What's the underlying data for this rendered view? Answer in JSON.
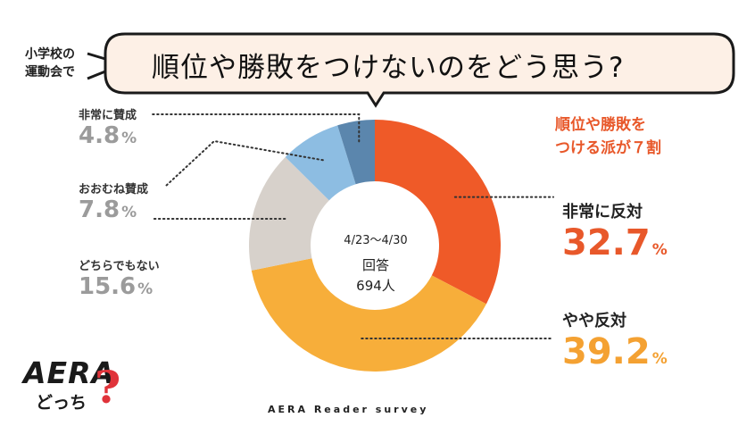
{
  "prefix": {
    "line1": "小学校の",
    "line2": "運動会で"
  },
  "question": "順位や勝敗をつけないのをどう思う?",
  "headline": {
    "line1": "順位や勝敗を",
    "line2": "つける派が７割"
  },
  "center": {
    "dates": "4/23～4/30",
    "label": "回答",
    "count": "694人"
  },
  "source": "AERA Reader survey",
  "logo": {
    "aera": "AERA",
    "docchi": "どっち",
    "mark": "?"
  },
  "chart_data": {
    "type": "pie",
    "title": "順位や勝敗をつけないのをどう思う?",
    "unit": "%",
    "slices": [
      {
        "label": "非常に反対",
        "value": 32.7,
        "value_text": "32.7",
        "color": "#ef5a28"
      },
      {
        "label": "やや反対",
        "value": 39.2,
        "value_text": "39.2",
        "color": "#f7ae3a"
      },
      {
        "label": "どちらでもない",
        "value": 15.6,
        "value_text": "15.6",
        "color": "#d7d1cb"
      },
      {
        "label": "おおむね賛成",
        "value": 7.8,
        "value_text": "7.8",
        "color": "#8dbde2"
      },
      {
        "label": "非常に賛成",
        "value": 4.8,
        "value_text": "4.8",
        "color": "#5b86ad"
      }
    ],
    "accent_color": "#e8582a",
    "value_color_left": "#9b9b9b"
  }
}
